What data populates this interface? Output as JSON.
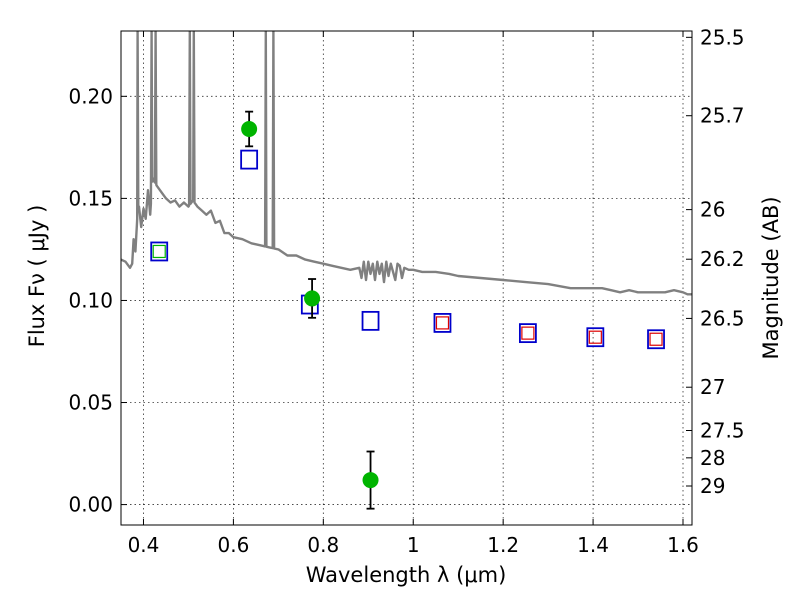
{
  "chart_data": {
    "type": "scatter",
    "xlabel": "Wavelength  λ (μm)",
    "ylabel": "Flux  Fν  ( μJy )",
    "y2label": "Magnitude (AB)",
    "xlim": [
      0.35,
      1.62
    ],
    "ylim": [
      -0.01,
      0.232
    ],
    "grid": true,
    "x_ticks": [
      0.4,
      0.6,
      0.8,
      1.0,
      1.2,
      1.4,
      1.6
    ],
    "x_tick_labels": [
      "0.4",
      "0.6",
      "0.8",
      "1",
      "1.2",
      "1.4",
      "1.6"
    ],
    "y_ticks": [
      0.0,
      0.05,
      0.1,
      0.15,
      0.2
    ],
    "y_tick_labels": [
      "0.00",
      "0.05",
      "0.10",
      "0.15",
      "0.20"
    ],
    "mag_ticks": [
      {
        "label": "25.5",
        "flux": 0.2289
      },
      {
        "label": "25.7",
        "flux": 0.1905
      },
      {
        "label": "26",
        "flux": 0.1445
      },
      {
        "label": "26.2",
        "flux": 0.1202
      },
      {
        "label": "26.5",
        "flux": 0.0912
      },
      {
        "label": "27",
        "flux": 0.0575
      },
      {
        "label": "27.5",
        "flux": 0.0363
      },
      {
        "label": "28",
        "flux": 0.0229
      },
      {
        "label": "29",
        "flux": 0.0091
      }
    ],
    "colors": {
      "sed": "#808080",
      "observed": "#00b400",
      "model": "#0000cc",
      "square_fill_green": "#00b400",
      "square_fill_red": "#dd0000",
      "errorbar": "#000000"
    },
    "observed": [
      {
        "x": 0.635,
        "y": 0.184,
        "err": 0.0085
      },
      {
        "x": 0.775,
        "y": 0.101,
        "err": 0.0095
      },
      {
        "x": 0.905,
        "y": 0.012,
        "err": 0.014
      }
    ],
    "model_photometry": [
      {
        "x": 0.435,
        "y": 0.124,
        "inner": "green"
      },
      {
        "x": 0.635,
        "y": 0.169,
        "inner": "none"
      },
      {
        "x": 0.77,
        "y": 0.098,
        "inner": "none"
      },
      {
        "x": 0.905,
        "y": 0.09,
        "inner": "none"
      },
      {
        "x": 1.065,
        "y": 0.089,
        "inner": "red"
      },
      {
        "x": 1.255,
        "y": 0.084,
        "inner": "red"
      },
      {
        "x": 1.405,
        "y": 0.082,
        "inner": "red"
      },
      {
        "x": 1.54,
        "y": 0.081,
        "inner": "red"
      }
    ],
    "sed": {
      "continuum": [
        [
          0.35,
          0.12
        ],
        [
          0.36,
          0.119
        ],
        [
          0.37,
          0.116
        ],
        [
          0.375,
          0.118
        ],
        [
          0.378,
          0.13
        ],
        [
          0.382,
          0.124
        ],
        [
          0.386,
          0.14
        ],
        [
          0.39,
          0.146
        ],
        [
          0.395,
          0.136
        ],
        [
          0.4,
          0.145
        ],
        [
          0.405,
          0.14
        ],
        [
          0.41,
          0.154
        ],
        [
          0.415,
          0.142
        ],
        [
          0.42,
          0.16
        ],
        [
          0.425,
          0.158
        ],
        [
          0.43,
          0.156
        ],
        [
          0.44,
          0.153
        ],
        [
          0.45,
          0.15
        ],
        [
          0.46,
          0.148
        ],
        [
          0.47,
          0.149
        ],
        [
          0.48,
          0.146
        ],
        [
          0.49,
          0.148
        ],
        [
          0.5,
          0.146
        ],
        [
          0.51,
          0.149
        ],
        [
          0.52,
          0.146
        ],
        [
          0.53,
          0.144
        ],
        [
          0.54,
          0.142
        ],
        [
          0.55,
          0.144
        ],
        [
          0.56,
          0.138
        ],
        [
          0.57,
          0.139
        ],
        [
          0.58,
          0.133
        ],
        [
          0.59,
          0.133
        ],
        [
          0.6,
          0.131
        ],
        [
          0.62,
          0.13
        ],
        [
          0.64,
          0.128
        ],
        [
          0.66,
          0.127
        ],
        [
          0.68,
          0.126
        ],
        [
          0.7,
          0.125
        ],
        [
          0.72,
          0.122
        ],
        [
          0.74,
          0.122
        ],
        [
          0.76,
          0.12
        ],
        [
          0.78,
          0.119
        ],
        [
          0.8,
          0.118
        ],
        [
          0.82,
          0.117
        ],
        [
          0.84,
          0.116
        ],
        [
          0.86,
          0.115
        ],
        [
          0.88,
          0.116
        ],
        [
          0.885,
          0.111
        ],
        [
          0.89,
          0.119
        ],
        [
          0.895,
          0.11
        ],
        [
          0.9,
          0.119
        ],
        [
          0.905,
          0.113
        ],
        [
          0.91,
          0.118
        ],
        [
          0.915,
          0.11
        ],
        [
          0.92,
          0.119
        ],
        [
          0.925,
          0.113
        ],
        [
          0.93,
          0.118
        ],
        [
          0.935,
          0.109
        ],
        [
          0.94,
          0.119
        ],
        [
          0.945,
          0.112
        ],
        [
          0.95,
          0.118
        ],
        [
          0.96,
          0.11
        ],
        [
          0.965,
          0.118
        ],
        [
          0.97,
          0.117
        ],
        [
          0.975,
          0.111
        ],
        [
          0.98,
          0.116
        ],
        [
          0.99,
          0.115
        ],
        [
          1.0,
          0.115
        ],
        [
          1.02,
          0.114
        ],
        [
          1.05,
          0.114
        ],
        [
          1.08,
          0.113
        ],
        [
          1.1,
          0.112
        ],
        [
          1.15,
          0.111
        ],
        [
          1.2,
          0.11
        ],
        [
          1.25,
          0.109
        ],
        [
          1.3,
          0.108
        ],
        [
          1.35,
          0.106
        ],
        [
          1.4,
          0.106
        ],
        [
          1.42,
          0.106
        ],
        [
          1.44,
          0.105
        ],
        [
          1.46,
          0.104
        ],
        [
          1.48,
          0.105
        ],
        [
          1.5,
          0.104
        ],
        [
          1.52,
          0.104
        ],
        [
          1.54,
          0.104
        ],
        [
          1.56,
          0.104
        ],
        [
          1.58,
          0.105
        ],
        [
          1.6,
          0.104
        ],
        [
          1.61,
          0.103
        ],
        [
          1.62,
          0.103
        ]
      ],
      "emission_lines": [
        {
          "x": 0.387,
          "top": 0.232
        },
        {
          "x": 0.418,
          "top": 0.232
        },
        {
          "x": 0.427,
          "top": 0.232
        },
        {
          "x": 0.503,
          "top": 0.232
        },
        {
          "x": 0.512,
          "top": 0.232
        },
        {
          "x": 0.672,
          "top": 0.232
        },
        {
          "x": 0.689,
          "top": 0.232
        }
      ]
    }
  }
}
